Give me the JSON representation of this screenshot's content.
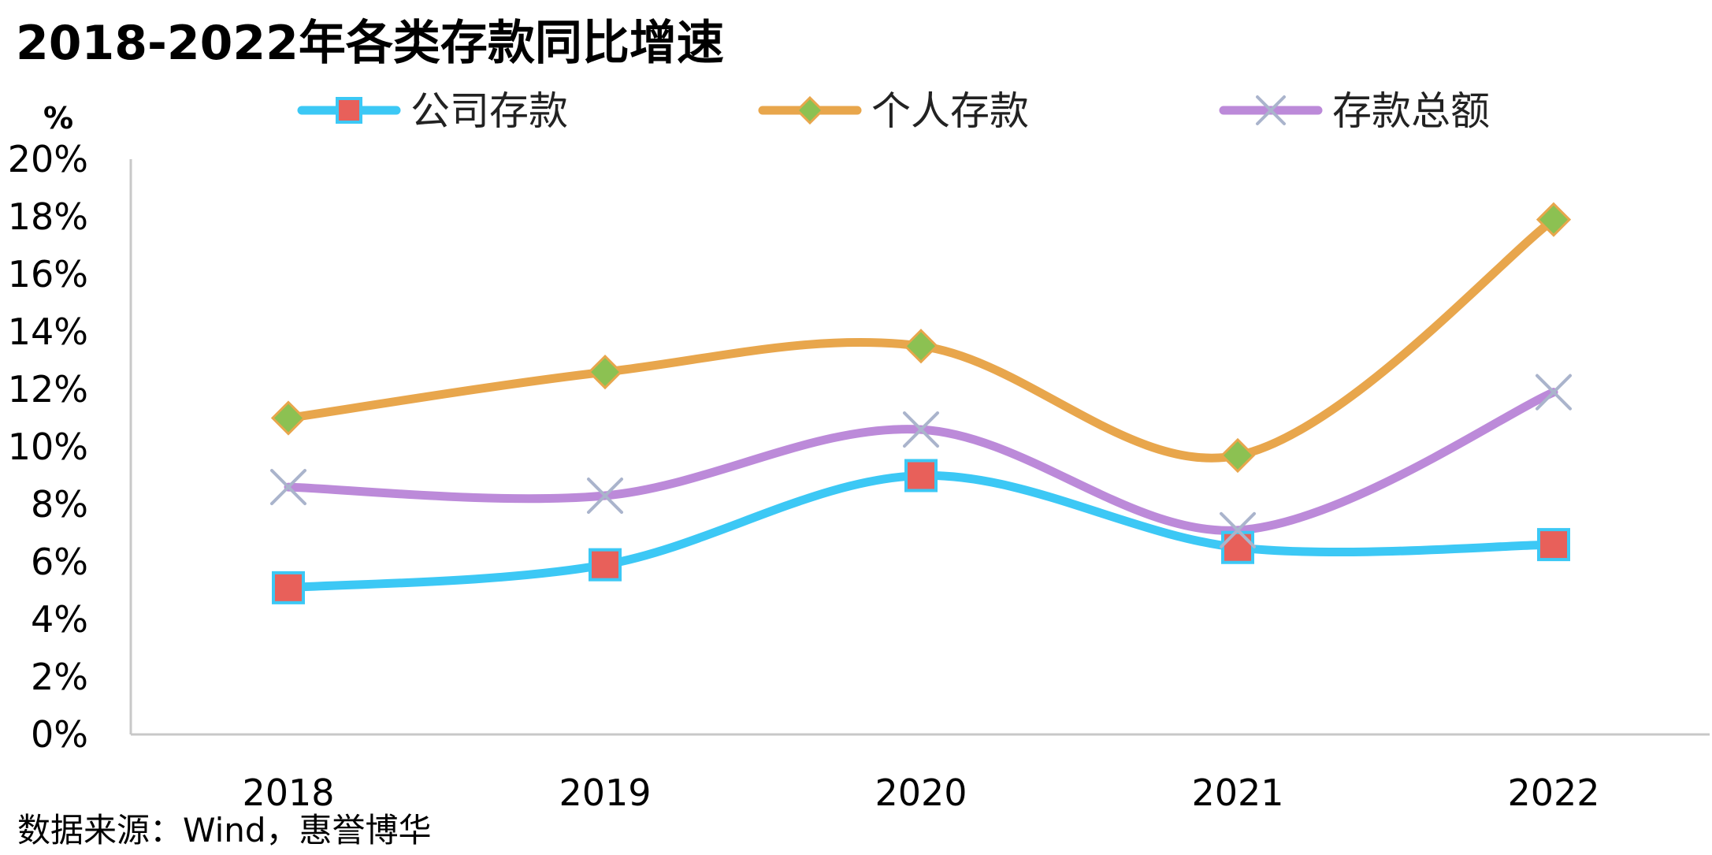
{
  "chart_data": {
    "type": "line",
    "title": "2018-2022年各类存款同比增速",
    "ylabel": "%",
    "xlabel": "",
    "categories": [
      "2018",
      "2019",
      "2020",
      "2021",
      "2022"
    ],
    "ylim": [
      0,
      20
    ],
    "yticks": [
      0,
      2,
      4,
      6,
      8,
      10,
      12,
      14,
      16,
      18,
      20
    ],
    "ytick_labels": [
      "0%",
      "2%",
      "4%",
      "6%",
      "8%",
      "10%",
      "12%",
      "14%",
      "16%",
      "18%",
      "20%"
    ],
    "grid": false,
    "legend_position": "top",
    "smooth": true,
    "series": [
      {
        "name": "公司存款",
        "values": [
          5.1,
          5.9,
          9.0,
          6.5,
          6.6
        ],
        "line_color": "#3cc8f5",
        "marker": "square",
        "marker_color": "#e8605a"
      },
      {
        "name": "个人存款",
        "values": [
          11.0,
          12.6,
          13.5,
          9.7,
          17.9
        ],
        "line_color": "#e8a64c",
        "marker": "diamond",
        "marker_color": "#8cc152"
      },
      {
        "name": "存款总额",
        "values": [
          8.6,
          8.3,
          10.6,
          7.1,
          11.9
        ],
        "line_color": "#bc8ad9",
        "marker": "x",
        "marker_color": "#aab4cc"
      }
    ],
    "source_note": "数据来源：Wind，惠誉博华"
  }
}
